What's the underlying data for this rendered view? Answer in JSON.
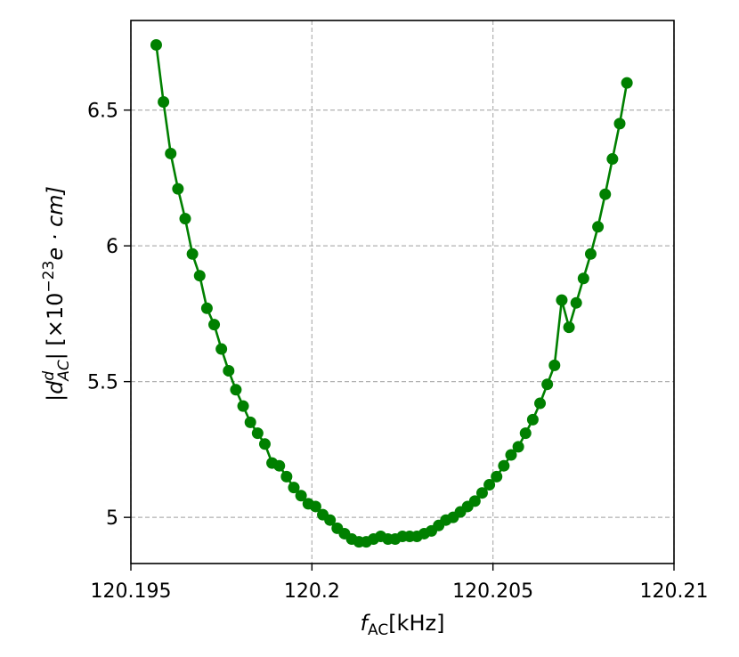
{
  "chart_data": {
    "type": "line",
    "title": "",
    "xlabel": {
      "main": "f",
      "sub": "AC",
      "unit": "[kHz]"
    },
    "ylabel": {
      "prefix": "|d",
      "sup": "d",
      "sub": "AC",
      "suffix": "| [×10",
      "exp": "−23",
      "unit": "e · cm]"
    },
    "xlim": [
      120.195,
      120.21
    ],
    "ylim": [
      4.83,
      6.83
    ],
    "xticks": [
      120.195,
      120.2,
      120.205,
      120.21
    ],
    "xtick_labels": [
      "120.195",
      "120.2",
      "120.205",
      "120.21"
    ],
    "yticks": [
      5,
      5.5,
      6,
      6.5
    ],
    "ytick_labels": [
      "5",
      "5.5",
      "6",
      "6.5"
    ],
    "grid": true,
    "legend": "none",
    "series": [
      {
        "color": "#008000",
        "x": [
          120.1957,
          120.1959,
          120.1961,
          120.1963,
          120.1965,
          120.1967,
          120.1969,
          120.1971,
          120.1973,
          120.1975,
          120.1977,
          120.1979,
          120.1981,
          120.1983,
          120.1985,
          120.1987,
          120.1989,
          120.1991,
          120.1993,
          120.1995,
          120.1997,
          120.1999,
          120.2001,
          120.2003,
          120.2005,
          120.2007,
          120.2009,
          120.2011,
          120.2013,
          120.2015,
          120.2017,
          120.2019,
          120.2021,
          120.2023,
          120.2025,
          120.2027,
          120.2029,
          120.2031,
          120.2033,
          120.2035,
          120.2037,
          120.2039,
          120.2041,
          120.2043,
          120.2045,
          120.2047,
          120.2049,
          120.2051,
          120.2053,
          120.2055,
          120.2057,
          120.2059,
          120.2061,
          120.2063,
          120.2065,
          120.2067,
          120.2069,
          120.2071,
          120.2073,
          120.2075,
          120.2077,
          120.2079,
          120.2081,
          120.2083,
          120.2085,
          120.2087
        ],
        "y": [
          6.74,
          6.53,
          6.34,
          6.21,
          6.1,
          5.97,
          5.89,
          5.77,
          5.71,
          5.62,
          5.54,
          5.47,
          5.41,
          5.35,
          5.31,
          5.27,
          5.2,
          5.19,
          5.15,
          5.11,
          5.08,
          5.05,
          5.04,
          5.01,
          4.99,
          4.96,
          4.94,
          4.92,
          4.91,
          4.91,
          4.92,
          4.93,
          4.92,
          4.92,
          4.93,
          4.93,
          4.93,
          4.94,
          4.95,
          4.97,
          4.99,
          5.0,
          5.02,
          5.04,
          5.06,
          5.09,
          5.12,
          5.15,
          5.19,
          5.23,
          5.26,
          5.31,
          5.36,
          5.42,
          5.49,
          5.56,
          5.8,
          5.7,
          5.79,
          5.88,
          5.97,
          6.07,
          6.19,
          6.32,
          6.45,
          6.6
        ]
      }
    ]
  }
}
